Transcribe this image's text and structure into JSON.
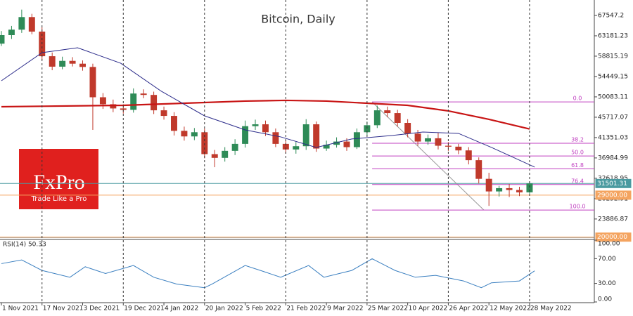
{
  "chart_data": [
    {
      "type": "candlestick",
      "title": "Bitcoin, Daily",
      "logo": {
        "brand": "FxPro",
        "tagline": "Trade Like a Pro"
      },
      "x": [
        0,
        4,
        8,
        12,
        16,
        20,
        24,
        28,
        32,
        36,
        40,
        44,
        48,
        52,
        56,
        60,
        64,
        68,
        72,
        76,
        80,
        84,
        88,
        92,
        96,
        100,
        104,
        108,
        112,
        116,
        120,
        124,
        128,
        132,
        136,
        140,
        144,
        148,
        152,
        156,
        160,
        164,
        168,
        172,
        176,
        180,
        184,
        188,
        192,
        196,
        200,
        204,
        208
      ],
      "open": [
        61500,
        63330,
        64500,
        67200,
        64080,
        58800,
        56560,
        57800,
        57200,
        56500,
        50000,
        48500,
        47600,
        47300,
        50800,
        50500,
        47200,
        46000,
        42800,
        41600,
        42500,
        37800,
        37000,
        38500,
        40000,
        43800,
        44200,
        42500,
        40000,
        38800,
        39500,
        44200,
        39000,
        39800,
        40500,
        39300,
        42500,
        44000,
        47200,
        46600,
        44500,
        42200,
        40500,
        41200,
        39600,
        39400,
        38600,
        36500,
        32500,
        29800,
        30500,
        30100,
        29600
      ],
      "high": [
        64200,
        65300,
        68800,
        67900,
        65000,
        59600,
        58700,
        58600,
        57900,
        57200,
        50900,
        49500,
        48500,
        51900,
        51700,
        51200,
        48000,
        46800,
        43700,
        43400,
        43300,
        38700,
        39300,
        41000,
        45000,
        45200,
        45000,
        43300,
        40800,
        40400,
        45300,
        44800,
        40700,
        41400,
        41200,
        43300,
        44800,
        48200,
        48000,
        47300,
        45300,
        43000,
        42000,
        42400,
        40400,
        40000,
        39300,
        37100,
        33800,
        31000,
        31400,
        30800,
        32000
      ],
      "low": [
        61000,
        62500,
        63800,
        63500,
        58000,
        55800,
        56000,
        56600,
        55700,
        43000,
        47500,
        46800,
        46500,
        46700,
        49800,
        46400,
        45200,
        41800,
        40700,
        40800,
        36900,
        35000,
        36200,
        37600,
        39200,
        43000,
        41700,
        39300,
        37900,
        37900,
        38700,
        38300,
        38500,
        39200,
        38500,
        38900,
        41800,
        43400,
        45700,
        43700,
        41400,
        39600,
        39800,
        38800,
        38500,
        37800,
        35600,
        31500,
        26700,
        28700,
        28600,
        28800,
        29300
      ],
      "close": [
        63330,
        64500,
        67200,
        64080,
        58800,
        56560,
        57800,
        57200,
        56500,
        50000,
        48500,
        47600,
        47300,
        50800,
        50500,
        47200,
        46000,
        42800,
        41600,
        42500,
        37800,
        37000,
        38500,
        40000,
        43800,
        44200,
        42500,
        40000,
        38800,
        39500,
        44200,
        39000,
        39800,
        40500,
        39300,
        42500,
        44000,
        47200,
        46600,
        44500,
        42200,
        40500,
        41200,
        39600,
        39400,
        38600,
        36500,
        32500,
        29800,
        30500,
        30100,
        29600,
        31500
      ],
      "up_color": "#2e8b57",
      "down_color": "#c0392b",
      "overlays": [
        {
          "color": "#c81414",
          "x": [
            0,
            16,
            32,
            48,
            64,
            80,
            96,
            112,
            128,
            144,
            160,
            176,
            192,
            208
          ],
          "values": [
            47970,
            48070,
            48170,
            48270,
            48570,
            48870,
            49180,
            49330,
            49180,
            48720,
            48270,
            47070,
            45260,
            43200
          ]
        },
        {
          "color": "#2b2b8a",
          "x": [
            0,
            16,
            30,
            47,
            63,
            80,
            96,
            110,
            124,
            138,
            154,
            166,
            180,
            193,
            210
          ],
          "values": [
            53540,
            59560,
            60620,
            57300,
            51280,
            46010,
            43000,
            41500,
            39240,
            41050,
            41800,
            42550,
            42250,
            39240,
            35020
          ]
        }
      ],
      "levels": [
        {
          "value": 31501.31,
          "label": "31501.31",
          "color": "#4a9aa0"
        },
        {
          "value": 29000,
          "label": "29000.00",
          "color": "#f4a460"
        },
        {
          "value": 20000,
          "label": "20000.00",
          "color": "#f4a460"
        }
      ],
      "fib": {
        "high": 49000,
        "low": 25800,
        "high_x": 146,
        "low_x": 190,
        "color": "#c040c0",
        "levels": [
          {
            "value": 0,
            "label": "0.0"
          },
          {
            "value": 38.2,
            "label": "38.2"
          },
          {
            "value": 50,
            "label": "50.0"
          },
          {
            "value": 61.8,
            "label": "61.8"
          },
          {
            "value": 76.4,
            "label": "76.4"
          },
          {
            "value": 100,
            "label": "100.0"
          }
        ]
      },
      "xlim": [
        -0.55,
        233.5
      ],
      "ylim": [
        19950,
        70860
      ],
      "yticks": [
        67547.2,
        63181.23,
        58815.19,
        54449.15,
        50083.11,
        45717.07,
        41351.03,
        36984.99,
        32618.95,
        28252.91,
        23886.87
      ]
    },
    {
      "type": "line",
      "title": "RSI(14) 50.33",
      "color": "#3a7fc0",
      "x": [
        0,
        8,
        16,
        27,
        33,
        41,
        52,
        60,
        69,
        80,
        83,
        96,
        102,
        110,
        121,
        127,
        138,
        146,
        155,
        163,
        171,
        182,
        189,
        193,
        204,
        210
      ],
      "values": [
        62,
        68,
        51,
        40,
        57,
        46,
        59,
        40,
        29,
        23,
        29,
        59,
        51,
        40,
        59,
        40,
        51,
        70,
        51,
        40,
        43,
        34,
        23,
        31,
        34,
        50.33
      ],
      "xlim": [
        -0.55,
        233.5
      ],
      "ylim": [
        0,
        100
      ],
      "yticks": [
        {
          "value": 100,
          "label": "100.00"
        },
        {
          "value": 70,
          "label": "70.00"
        },
        {
          "value": 30,
          "label": "30.00"
        },
        {
          "value": 0,
          "label": "0.00"
        }
      ],
      "xticks": [
        {
          "value": 0,
          "label": "1 Nov 2021"
        },
        {
          "value": 16,
          "label": "17 Nov 2021"
        },
        {
          "value": 32,
          "label": "3 Dec 2021"
        },
        {
          "value": 48,
          "label": "19 Dec 2021"
        },
        {
          "value": 64,
          "label": "4 Jan 2022"
        },
        {
          "value": 80,
          "label": "20 Jan 2022"
        },
        {
          "value": 96,
          "label": "5 Feb 2022"
        },
        {
          "value": 112,
          "label": "21 Feb 2022"
        },
        {
          "value": 128,
          "label": "9 Mar 2022"
        },
        {
          "value": 144,
          "label": "25 Mar 2022"
        },
        {
          "value": 160,
          "label": "10 Apr 2022"
        },
        {
          "value": 176,
          "label": "26 Apr 2022"
        },
        {
          "value": 192,
          "label": "12 May 2022"
        },
        {
          "value": 208,
          "label": "28 May 2022"
        }
      ],
      "grid": true
    }
  ]
}
